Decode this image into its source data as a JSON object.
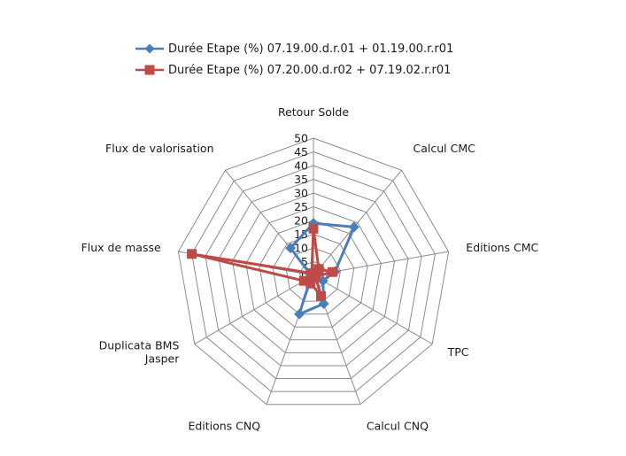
{
  "chart_data": {
    "type": "radar",
    "categories": [
      "Retour Solde",
      "Calcul CMC",
      "Editions CMC",
      "TPC",
      "Calcul CNQ",
      "Editions CNQ",
      "Duplicata BMS Jasper",
      "Flux de masse",
      "Flux de valorisation"
    ],
    "category_lines": [
      [
        "Retour Solde"
      ],
      [
        "Calcul CMC"
      ],
      [
        "Editions CMC"
      ],
      [
        "TPC"
      ],
      [
        "Calcul CNQ"
      ],
      [
        "Editions CNQ"
      ],
      [
        "Duplicata BMS",
        "Jasper"
      ],
      [
        "Flux de masse"
      ],
      [
        "Flux de valorisation"
      ]
    ],
    "rlim": [
      0,
      50
    ],
    "ticks": [
      "0",
      "5",
      "10",
      "15",
      "20",
      "25",
      "30",
      "35",
      "40",
      "45",
      "50"
    ],
    "grid": true,
    "legend_position": "top",
    "series": [
      {
        "name": "Durée Etape (%) 07.19.00.d.r.01 + 01.19.00.r.r01",
        "values": [
          19,
          23,
          8,
          4,
          11,
          15,
          1,
          1,
          13
        ],
        "color": "#4a7ebb",
        "marker": "diamond"
      },
      {
        "name": "Durée Etape (%) 07.20.00.d.r02 + 07.19.02.r.r01",
        "values": [
          17,
          3,
          7,
          1,
          8,
          3,
          4,
          45,
          1
        ],
        "color": "#be4b48",
        "marker": "square"
      }
    ]
  }
}
